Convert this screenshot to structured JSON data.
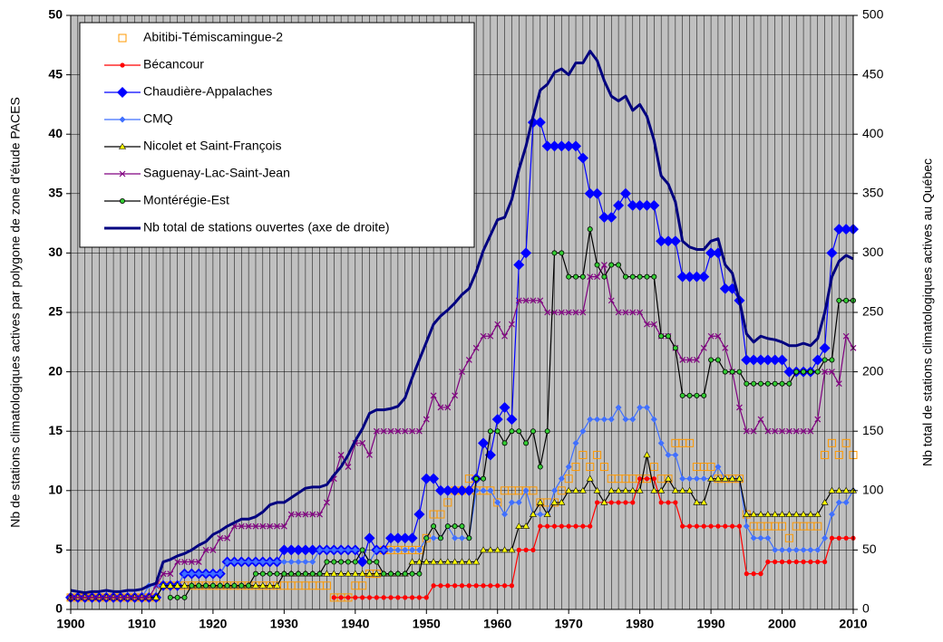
{
  "chart_data": {
    "type": "line",
    "y_label": "Nb de stations climatologiques actives par polygone de zone d'étude PACES",
    "y2_label": "Nb total de stations climatologiques actives au Québec",
    "xlim": [
      1900,
      2010
    ],
    "xticks": [
      1900,
      1910,
      1920,
      1930,
      1940,
      1950,
      1960,
      1970,
      1980,
      1990,
      2000,
      2010
    ],
    "ylim": [
      0,
      50
    ],
    "yticks": [
      0,
      5,
      10,
      15,
      20,
      25,
      30,
      35,
      40,
      45,
      50
    ],
    "y2lim": [
      0,
      500
    ],
    "y2ticks": [
      0,
      50,
      100,
      150,
      200,
      250,
      300,
      350,
      400,
      450,
      500
    ],
    "grid": true,
    "legend": "upper left",
    "x": [
      1900,
      1901,
      1902,
      1903,
      1904,
      1905,
      1906,
      1907,
      1908,
      1909,
      1910,
      1911,
      1912,
      1913,
      1914,
      1915,
      1916,
      1917,
      1918,
      1919,
      1920,
      1921,
      1922,
      1923,
      1924,
      1925,
      1926,
      1927,
      1928,
      1929,
      1930,
      1931,
      1932,
      1933,
      1934,
      1935,
      1936,
      1937,
      1938,
      1939,
      1940,
      1941,
      1942,
      1943,
      1944,
      1945,
      1946,
      1947,
      1948,
      1949,
      1950,
      1951,
      1952,
      1953,
      1954,
      1955,
      1956,
      1957,
      1958,
      1959,
      1960,
      1961,
      1962,
      1963,
      1964,
      1965,
      1966,
      1967,
      1968,
      1969,
      1970,
      1971,
      1972,
      1973,
      1974,
      1975,
      1976,
      1977,
      1978,
      1979,
      1980,
      1981,
      1982,
      1983,
      1984,
      1985,
      1986,
      1987,
      1988,
      1989,
      1990,
      1991,
      1992,
      1993,
      1994,
      1995,
      1996,
      1997,
      1998,
      1999,
      2000,
      2001,
      2002,
      2003,
      2004,
      2005,
      2006,
      2007,
      2008,
      2009,
      2010
    ],
    "series": [
      {
        "name": "Abitibi-Témiscamingue-2",
        "color": "#ff9900",
        "marker": "square-open",
        "line": false,
        "values": [
          1,
          1,
          1,
          1,
          1,
          1,
          1,
          1,
          1,
          1,
          1,
          1,
          1,
          2,
          2,
          2,
          2,
          2,
          2,
          2,
          2,
          2,
          2,
          2,
          2,
          2,
          2,
          2,
          2,
          2,
          2,
          2,
          2,
          2,
          2,
          2,
          2,
          1,
          1,
          1,
          2,
          2,
          3,
          3,
          5,
          5,
          5,
          5,
          5,
          5,
          6,
          8,
          8,
          9,
          10,
          10,
          11,
          10,
          10,
          10,
          9,
          10,
          10,
          10,
          10,
          10,
          9,
          9,
          9,
          10,
          11,
          12,
          13,
          12,
          13,
          12,
          11,
          11,
          11,
          11,
          11,
          11,
          12,
          11,
          11,
          14,
          14,
          14,
          12,
          12,
          12,
          11,
          11,
          11,
          11,
          8,
          7,
          7,
          7,
          7,
          7,
          6,
          7,
          7,
          7,
          7,
          13,
          14,
          13,
          14,
          13
        ]
      },
      {
        "name": "Bécancour",
        "color": "#ff0000",
        "marker": "circle",
        "line": true,
        "values": [
          null,
          null,
          null,
          null,
          null,
          null,
          null,
          null,
          null,
          null,
          null,
          null,
          null,
          null,
          null,
          null,
          null,
          null,
          null,
          null,
          null,
          null,
          null,
          null,
          null,
          null,
          null,
          null,
          null,
          null,
          null,
          null,
          null,
          null,
          null,
          null,
          null,
          1,
          1,
          1,
          1,
          1,
          1,
          1,
          1,
          1,
          1,
          1,
          1,
          1,
          1,
          2,
          2,
          2,
          2,
          2,
          2,
          2,
          2,
          2,
          2,
          2,
          2,
          5,
          5,
          5,
          7,
          7,
          7,
          7,
          7,
          7,
          7,
          7,
          9,
          9,
          9,
          9,
          9,
          9,
          11,
          11,
          11,
          9,
          9,
          9,
          7,
          7,
          7,
          7,
          7,
          7,
          7,
          7,
          7,
          3,
          3,
          3,
          4,
          4,
          4,
          4,
          4,
          4,
          4,
          4,
          4,
          6,
          6,
          6,
          6
        ]
      },
      {
        "name": "Chaudière-Appalaches",
        "color": "#0000ff",
        "marker": "diamond-large",
        "line": true,
        "values": [
          1,
          1,
          1,
          1,
          1,
          1,
          1,
          1,
          1,
          1,
          1,
          1,
          1,
          2,
          2,
          2,
          3,
          3,
          3,
          3,
          3,
          3,
          4,
          4,
          4,
          4,
          4,
          4,
          4,
          4,
          5,
          5,
          5,
          5,
          5,
          5,
          5,
          5,
          5,
          5,
          5,
          4,
          6,
          5,
          5,
          6,
          6,
          6,
          6,
          8,
          11,
          11,
          10,
          10,
          10,
          10,
          10,
          11,
          14,
          13,
          16,
          17,
          16,
          29,
          30,
          41,
          41,
          39,
          39,
          39,
          39,
          39,
          38,
          35,
          35,
          33,
          33,
          34,
          35,
          34,
          34,
          34,
          34,
          31,
          31,
          31,
          28,
          28,
          28,
          28,
          30,
          30,
          27,
          27,
          26,
          21,
          21,
          21,
          21,
          21,
          21,
          20,
          20,
          20,
          20,
          21,
          22,
          30,
          32,
          32,
          32
        ]
      },
      {
        "name": "CMQ",
        "color": "#3f6fff",
        "marker": "diamond",
        "line": true,
        "values": [
          1,
          1,
          1,
          1,
          1,
          1,
          1,
          1,
          1,
          1,
          1,
          2,
          2,
          2,
          2,
          2,
          3,
          3,
          3,
          3,
          3,
          3,
          4,
          4,
          4,
          4,
          4,
          4,
          4,
          4,
          4,
          4,
          4,
          4,
          4,
          5,
          5,
          5,
          5,
          5,
          5,
          5,
          4,
          5,
          5,
          5,
          5,
          5,
          5,
          5,
          6,
          6,
          6,
          7,
          6,
          6,
          6,
          10,
          10,
          10,
          9,
          8,
          9,
          9,
          10,
          8,
          8,
          8,
          10,
          11,
          12,
          14,
          15,
          16,
          16,
          16,
          16,
          17,
          16,
          16,
          17,
          17,
          16,
          14,
          13,
          13,
          11,
          11,
          11,
          11,
          11,
          12,
          11,
          11,
          11,
          7,
          6,
          6,
          6,
          5,
          5,
          5,
          5,
          5,
          5,
          5,
          6,
          8,
          9,
          9,
          10
        ]
      },
      {
        "name": "Nicolet et Saint-François",
        "color": "#000000",
        "marker_color": "#ffff00",
        "marker": "triangle",
        "line": true,
        "values": [
          1,
          1,
          1,
          1,
          1,
          1,
          1,
          1,
          1,
          1,
          1,
          1,
          1,
          2,
          2,
          2,
          2,
          2,
          2,
          2,
          2,
          2,
          2,
          2,
          2,
          2,
          2,
          2,
          2,
          2,
          3,
          3,
          3,
          3,
          3,
          3,
          3,
          3,
          3,
          3,
          3,
          3,
          3,
          3,
          3,
          3,
          3,
          3,
          4,
          4,
          4,
          4,
          4,
          4,
          4,
          4,
          4,
          4,
          5,
          5,
          5,
          5,
          5,
          7,
          7,
          8,
          9,
          8,
          9,
          9,
          10,
          10,
          10,
          11,
          10,
          9,
          10,
          10,
          10,
          10,
          10,
          13,
          10,
          10,
          11,
          10,
          10,
          10,
          9,
          9,
          11,
          11,
          11,
          11,
          11,
          8,
          8,
          8,
          8,
          8,
          8,
          8,
          8,
          8,
          8,
          8,
          9,
          10,
          10,
          10,
          10
        ]
      },
      {
        "name": "Saguenay-Lac-Saint-Jean",
        "color": "#800080",
        "marker": "x",
        "line": true,
        "values": [
          1,
          1,
          1,
          1,
          1,
          1,
          1,
          1,
          1,
          1,
          1,
          1,
          2,
          3,
          3,
          4,
          4,
          4,
          4,
          5,
          5,
          6,
          6,
          7,
          7,
          7,
          7,
          7,
          7,
          7,
          7,
          8,
          8,
          8,
          8,
          8,
          9,
          11,
          13,
          12,
          14,
          14,
          13,
          15,
          15,
          15,
          15,
          15,
          15,
          15,
          16,
          18,
          17,
          17,
          18,
          20,
          21,
          22,
          23,
          23,
          24,
          23,
          24,
          26,
          26,
          26,
          26,
          25,
          25,
          25,
          25,
          25,
          25,
          28,
          28,
          29,
          26,
          25,
          25,
          25,
          25,
          24,
          24,
          23,
          23,
          22,
          21,
          21,
          21,
          22,
          23,
          23,
          22,
          20,
          17,
          15,
          15,
          16,
          15,
          15,
          15,
          15,
          15,
          15,
          15,
          16,
          20,
          20,
          19,
          23,
          22
        ]
      },
      {
        "name": "Montérégie-Est",
        "color": "#000000",
        "marker_color": "#33cc33",
        "marker": "circle-edged",
        "line": true,
        "values": [
          null,
          null,
          null,
          null,
          null,
          null,
          null,
          null,
          null,
          null,
          null,
          null,
          null,
          null,
          1,
          1,
          1,
          2,
          2,
          2,
          2,
          2,
          2,
          2,
          2,
          2,
          3,
          3,
          3,
          3,
          3,
          3,
          3,
          3,
          3,
          3,
          4,
          4,
          4,
          4,
          4,
          5,
          4,
          4,
          3,
          3,
          3,
          3,
          3,
          3,
          6,
          7,
          6,
          7,
          7,
          7,
          6,
          11,
          11,
          15,
          15,
          14,
          15,
          15,
          14,
          15,
          12,
          15,
          30,
          30,
          28,
          28,
          28,
          32,
          29,
          28,
          29,
          29,
          28,
          28,
          28,
          28,
          28,
          23,
          23,
          22,
          18,
          18,
          18,
          18,
          21,
          21,
          20,
          20,
          20,
          19,
          19,
          19,
          19,
          19,
          19,
          19,
          20,
          20,
          20,
          20,
          21,
          21,
          26,
          26,
          26
        ]
      },
      {
        "name": "Nb total de stations ouvertes (axe de droite)",
        "color": "#000080",
        "marker": "none",
        "line": true,
        "axis": "y2",
        "values": [
          16,
          15,
          14,
          15,
          15,
          16,
          15,
          15,
          16,
          16,
          17,
          20,
          22,
          40,
          42,
          45,
          47,
          50,
          54,
          57,
          63,
          66,
          70,
          73,
          76,
          76,
          78,
          82,
          88,
          90,
          90,
          94,
          98,
          102,
          103,
          103,
          105,
          113,
          120,
          130,
          142,
          152,
          165,
          168,
          168,
          169,
          171,
          178,
          195,
          210,
          225,
          240,
          247,
          252,
          258,
          265,
          270,
          284,
          302,
          315,
          328,
          330,
          345,
          370,
          390,
          415,
          437,
          442,
          452,
          455,
          450,
          460,
          460,
          470,
          462,
          445,
          432,
          428,
          432,
          420,
          425,
          415,
          395,
          365,
          358,
          343,
          310,
          305,
          303,
          303,
          310,
          312,
          290,
          283,
          260,
          232,
          225,
          230,
          228,
          227,
          225,
          222,
          222,
          224,
          222,
          228,
          250,
          280,
          293,
          298,
          295
        ]
      }
    ]
  }
}
